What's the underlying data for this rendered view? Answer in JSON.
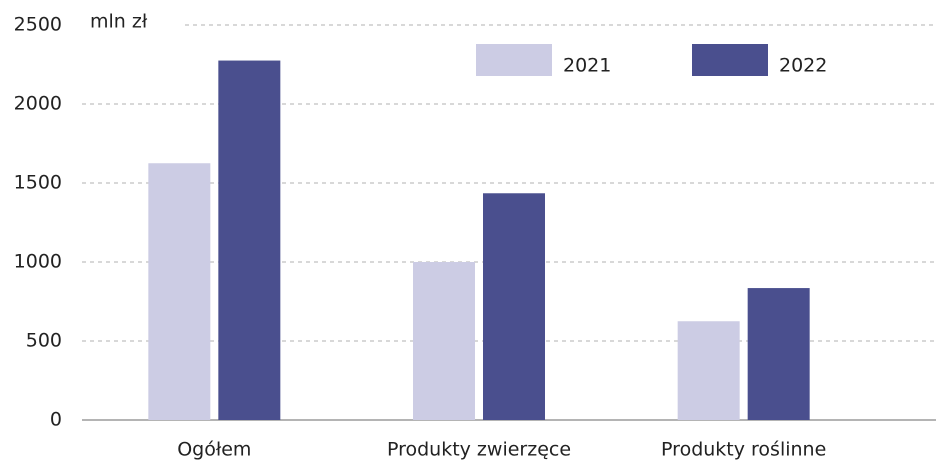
{
  "chart_data": {
    "type": "bar",
    "ylabel": "mln zł",
    "categories": [
      "Ogółem",
      "Produkty zwierzęce",
      "Produkty roślinne"
    ],
    "series": [
      {
        "name": "2021",
        "color": "#cccce4",
        "values": [
          1625,
          1000,
          625
        ]
      },
      {
        "name": "2022",
        "color": "#4a4f8e",
        "values": [
          2275,
          1435,
          835
        ]
      }
    ],
    "ylim": [
      0,
      2500
    ],
    "yticks": [
      0,
      500,
      1000,
      1500,
      2000,
      2500
    ],
    "grid": true,
    "legend": "top-right"
  }
}
